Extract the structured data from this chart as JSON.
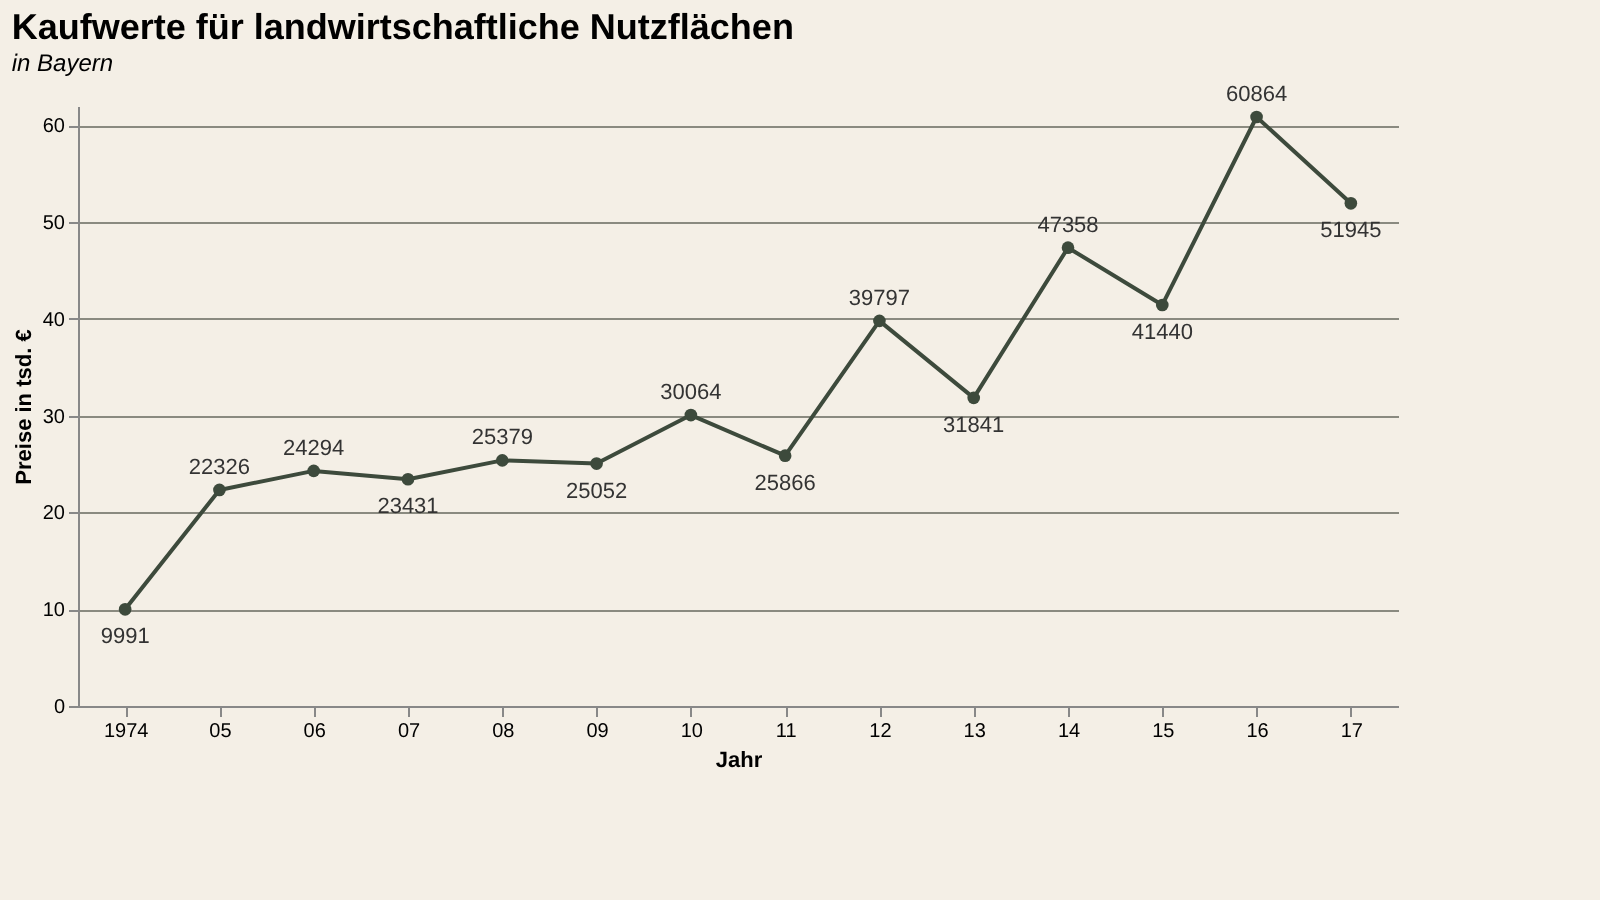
{
  "chart_data": {
    "type": "line",
    "title": "Kaufwerte für landwirtschaftliche Nutzflächen",
    "subtitle": "in Bayern",
    "xlabel": "Jahr",
    "ylabel": "Preise in tsd. €",
    "categories": [
      "1974",
      "05",
      "06",
      "07",
      "08",
      "09",
      "10",
      "11",
      "12",
      "13",
      "14",
      "15",
      "16",
      "17"
    ],
    "series": [
      {
        "color": "#3d4a3c",
        "values": [
          9.991,
          22.326,
          24.294,
          23.431,
          25.379,
          25.052,
          30.064,
          25.866,
          39.797,
          31.841,
          47.358,
          41.44,
          60.864,
          51.945
        ]
      }
    ],
    "annotations": [
      {
        "text": "9991",
        "x": "1974",
        "y": 9.991
      },
      {
        "text": "22326",
        "x": "05",
        "y": 22.326
      },
      {
        "text": "24294",
        "x": "06",
        "y": 24.294
      },
      {
        "text": "23431",
        "x": "07",
        "y": 23.431
      },
      {
        "text": "25379",
        "x": "08",
        "y": 25.379
      },
      {
        "text": "25052",
        "x": "09",
        "y": 25.052
      },
      {
        "text": "30064",
        "x": "10",
        "y": 30.064
      },
      {
        "text": "25866",
        "x": "11",
        "y": 25.866
      },
      {
        "text": "39797",
        "x": "12",
        "y": 39.797
      },
      {
        "text": "31841",
        "x": "13",
        "y": 31.841
      },
      {
        "text": "47358",
        "x": "14",
        "y": 47.358
      },
      {
        "text": "41440",
        "x": "15",
        "y": 41.44
      },
      {
        "text": "60864",
        "x": "16",
        "y": 60.864
      },
      {
        "text": "51945",
        "x": "17",
        "y": 51.945
      }
    ],
    "ylim": [
      0,
      62
    ],
    "yticks": [
      0,
      10,
      20,
      30,
      40,
      50,
      60
    ],
    "grid": "y",
    "marker": "circle",
    "line_style": "solid"
  }
}
